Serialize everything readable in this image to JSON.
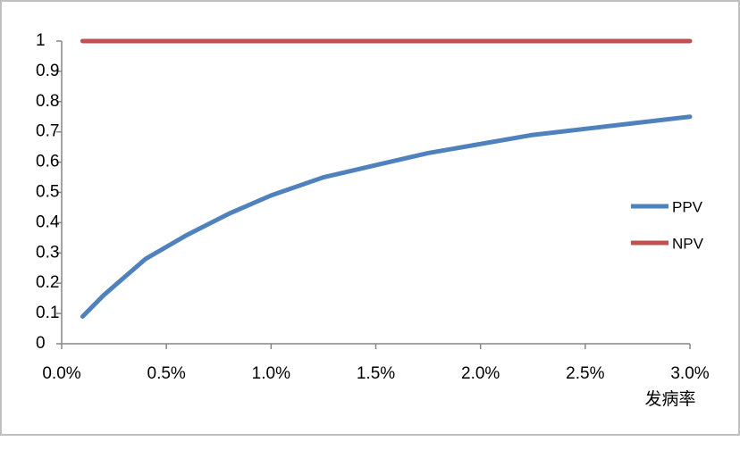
{
  "chart_data": {
    "type": "line",
    "x": [
      0.1,
      0.2,
      0.3,
      0.4,
      0.5,
      0.6,
      0.8,
      1.0,
      1.25,
      1.5,
      1.75,
      2.0,
      2.25,
      2.5,
      2.75,
      3.0
    ],
    "series": [
      {
        "name": "PPV",
        "color": "#4f81bd",
        "values": [
          0.09,
          0.16,
          0.22,
          0.28,
          0.32,
          0.36,
          0.43,
          0.49,
          0.55,
          0.59,
          0.63,
          0.66,
          0.69,
          0.71,
          0.73,
          0.75
        ]
      },
      {
        "name": "NPV",
        "color": "#c0504d",
        "values": [
          1,
          1,
          1,
          1,
          1,
          1,
          1,
          1,
          1,
          1,
          1,
          1,
          1,
          1,
          1,
          1
        ]
      }
    ],
    "xlabel": "发病率",
    "xlim": [
      0,
      3
    ],
    "xticks": [
      {
        "value": 0,
        "label": "0.0%"
      },
      {
        "value": 0.5,
        "label": "0.5%"
      },
      {
        "value": 1,
        "label": "1.0%"
      },
      {
        "value": 1.5,
        "label": "1.5%"
      },
      {
        "value": 2,
        "label": "2.0%"
      },
      {
        "value": 2.5,
        "label": "2.5%"
      },
      {
        "value": 3,
        "label": "3.0%"
      }
    ],
    "ylim": [
      0,
      1
    ],
    "yticks": [
      0,
      0.1,
      0.2,
      0.3,
      0.4,
      0.5,
      0.6,
      0.7,
      0.8,
      0.9,
      1
    ],
    "legend": "right"
  }
}
